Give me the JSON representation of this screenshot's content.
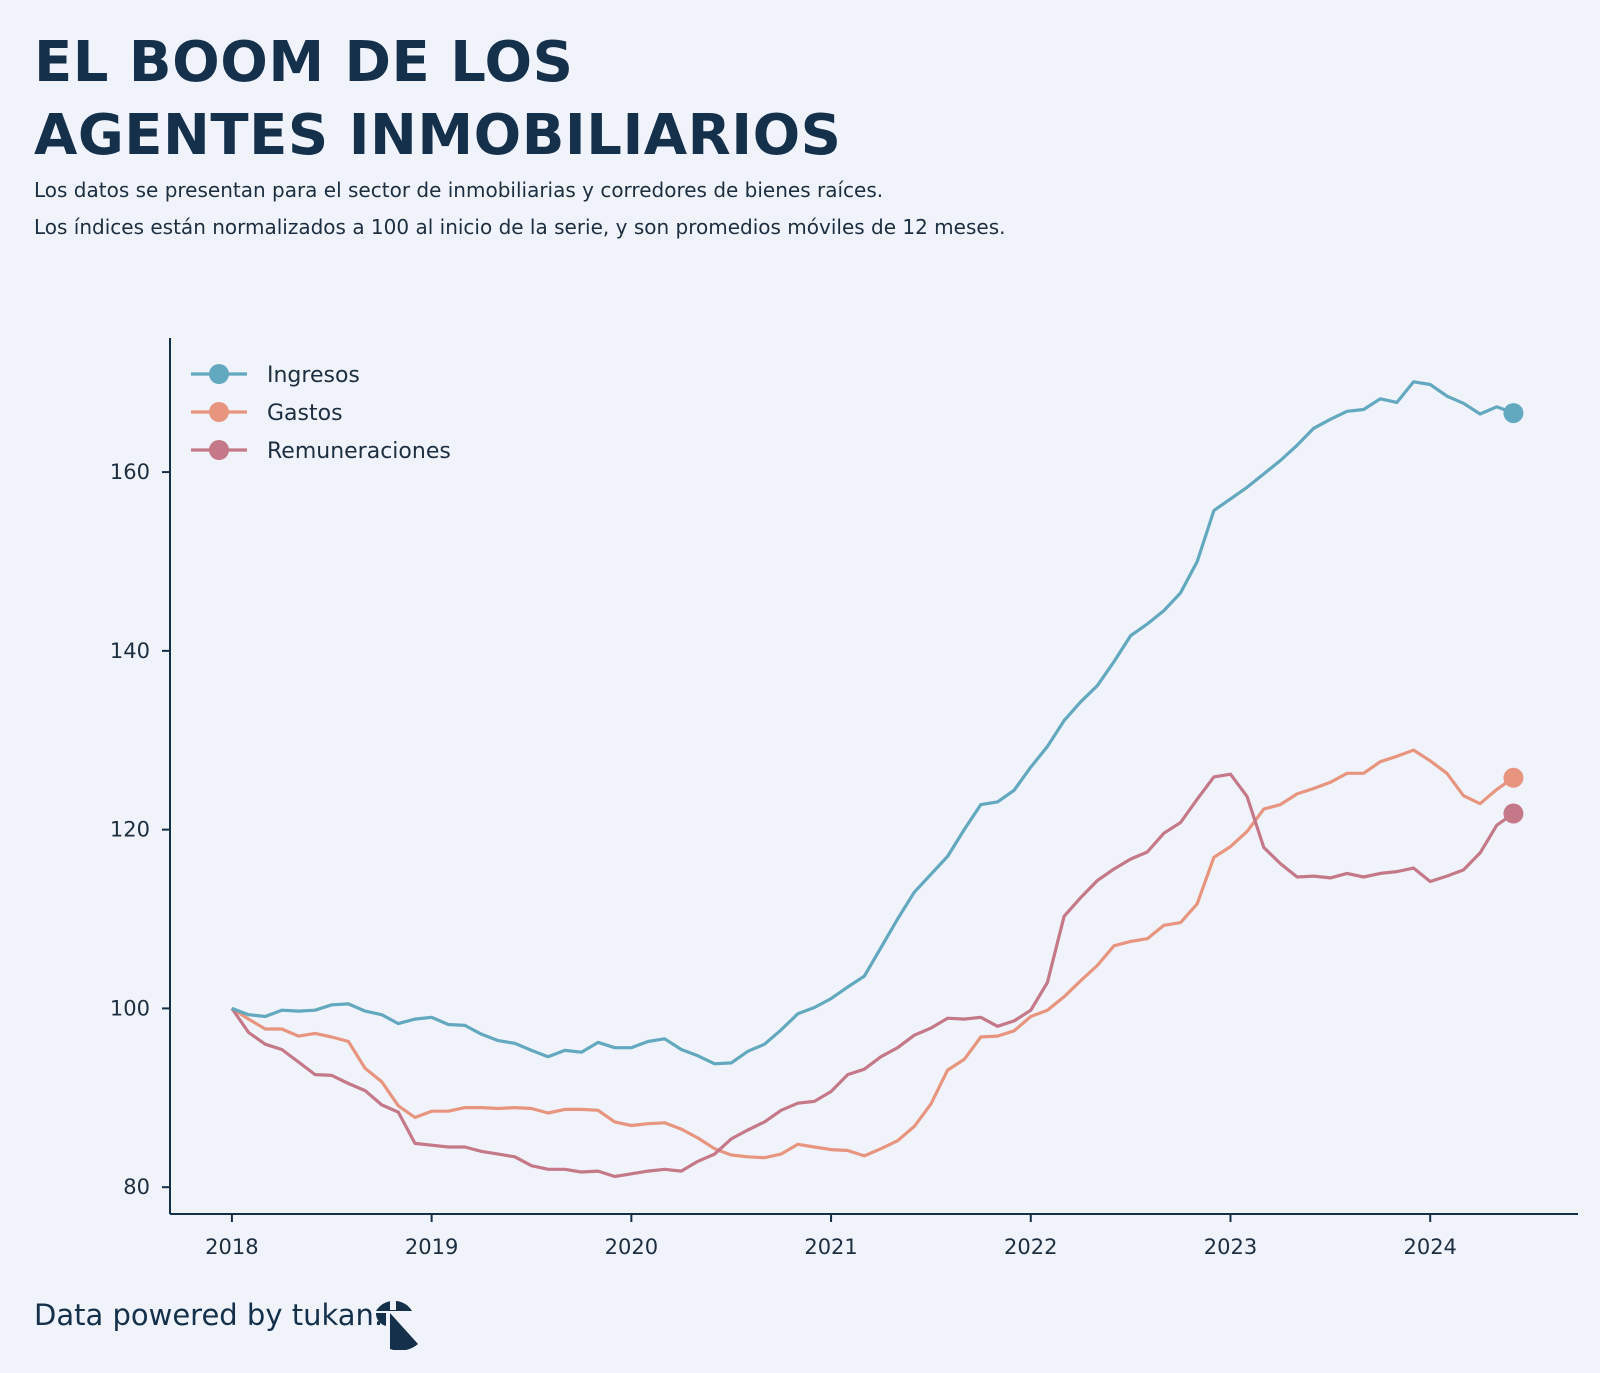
{
  "header": {
    "title_line1": "EL BOOM DE LOS",
    "title_line2": "AGENTES INMOBILIARIOS",
    "subtitle_line1": "Los datos se presentan para el sector de inmobiliarias y corredores de bienes raíces.",
    "subtitle_line2": "Los índices están normalizados a 100 al inicio de la serie, y son promedios móviles de 12 meses."
  },
  "footer": {
    "text": "Data powered by tukan.",
    "logo_icon": "tukan-logo-icon"
  },
  "chart_data": {
    "type": "line",
    "title": "",
    "xlabel": "",
    "ylabel": "",
    "xlim": [
      2017.69,
      2024.74
    ],
    "ylim": [
      77,
      175
    ],
    "x_ticks": [
      2018,
      2019,
      2020,
      2021,
      2022,
      2023,
      2024
    ],
    "y_ticks": [
      80,
      100,
      120,
      140,
      160
    ],
    "legend_position": "top-left",
    "grid": false,
    "x_start": "2018-01",
    "series": [
      {
        "name": "Ingresos",
        "color": "#62a8bf",
        "values": [
          100,
          99.3,
          99.1,
          99.8,
          99.7,
          99.8,
          100.4,
          100.5,
          99.7,
          99.3,
          98.3,
          98.8,
          99,
          98.2,
          98.1,
          97.1,
          96.4,
          96.1,
          95.3,
          94.6,
          95.3,
          95.1,
          96.2,
          95.6,
          95.6,
          96.3,
          96.6,
          95.4,
          94.7,
          93.8,
          93.9,
          95.2,
          96,
          97.6,
          99.4,
          100.1,
          101.1,
          102.4,
          103.6,
          106.8,
          110,
          113,
          115,
          117,
          120,
          122.8,
          123.1,
          124.4,
          127,
          129.3,
          132.2,
          134.3,
          136.1,
          138.8,
          141.7,
          143,
          144.5,
          146.5,
          150,
          155.7,
          157,
          158.3,
          159.8,
          161.3,
          163,
          164.9,
          165.9,
          166.8,
          167,
          168.2,
          167.8,
          170.1,
          169.8,
          168.5,
          167.7,
          166.5,
          167.3,
          166.6
        ]
      },
      {
        "name": "Gastos",
        "color": "#e89580",
        "values": [
          100,
          98.8,
          97.7,
          97.7,
          96.9,
          97.2,
          96.8,
          96.3,
          93.3,
          91.8,
          89.1,
          87.8,
          88.5,
          88.5,
          88.9,
          88.9,
          88.8,
          88.9,
          88.8,
          88.3,
          88.7,
          88.7,
          88.6,
          87.3,
          86.9,
          87.1,
          87.2,
          86.5,
          85.5,
          84.3,
          83.6,
          83.4,
          83.3,
          83.7,
          84.8,
          84.5,
          84.2,
          84.1,
          83.5,
          84.3,
          85.2,
          86.8,
          89.3,
          93.1,
          94.3,
          96.8,
          96.9,
          97.5,
          99.1,
          99.8,
          101.3,
          103.1,
          104.8,
          107,
          107.5,
          107.8,
          109.3,
          109.6,
          111.7,
          116.9,
          118.1,
          119.8,
          122.3,
          122.8,
          124,
          124.6,
          125.3,
          126.3,
          126.3,
          127.6,
          128.2,
          128.9,
          127.7,
          126.3,
          123.8,
          122.9,
          124.5,
          125.8
        ]
      },
      {
        "name": "Remuneraciones",
        "color": "#c47888",
        "values": [
          100,
          97.3,
          96,
          95.4,
          94,
          92.6,
          92.5,
          91.6,
          90.8,
          89.2,
          88.4,
          84.9,
          84.7,
          84.5,
          84.5,
          84,
          83.7,
          83.4,
          82.4,
          82,
          82,
          81.7,
          81.8,
          81.2,
          81.5,
          81.8,
          82,
          81.8,
          82.9,
          83.7,
          85.4,
          86.4,
          87.3,
          88.6,
          89.4,
          89.6,
          90.7,
          92.6,
          93.2,
          94.6,
          95.6,
          97,
          97.8,
          98.9,
          98.8,
          99,
          98,
          98.6,
          99.8,
          102.9,
          110.3,
          112.4,
          114.3,
          115.6,
          116.7,
          117.5,
          119.6,
          120.8,
          123.4,
          125.9,
          126.2,
          123.7,
          118,
          116.2,
          114.7,
          114.8,
          114.6,
          115.1,
          114.7,
          115.1,
          115.3,
          115.7,
          114.2,
          114.8,
          115.5,
          117.4,
          120.5,
          121.8
        ]
      }
    ]
  }
}
